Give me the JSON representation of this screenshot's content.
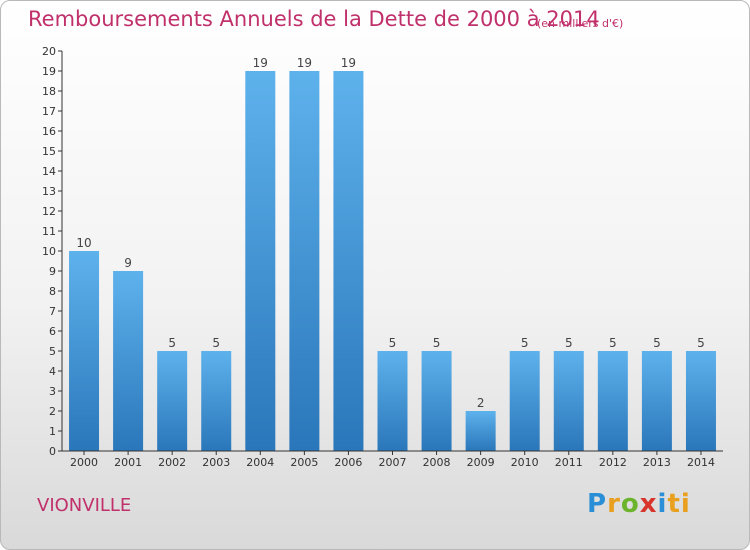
{
  "title": "Remboursements Annuels de la Dette de 2000 à 2014",
  "subtitle": "(en milliers d'€)",
  "commune": "VIONVILLE",
  "logo": {
    "letters": [
      "P",
      "r",
      "o",
      "x",
      "i",
      "ti"
    ]
  },
  "colors": {
    "accent": "#c0306a",
    "bar_light": "#5aaee9",
    "bar_dark": "#2a78bd",
    "axis": "#333333"
  },
  "chart_data": {
    "type": "bar",
    "title": "Remboursements Annuels de la Dette de 2000 à 2014",
    "subtitle": "(en milliers d'€)",
    "xlabel": "",
    "ylabel": "",
    "categories": [
      "2000",
      "2001",
      "2002",
      "2003",
      "2004",
      "2005",
      "2006",
      "2007",
      "2008",
      "2009",
      "2010",
      "2011",
      "2012",
      "2013",
      "2014"
    ],
    "values": [
      10,
      9,
      5,
      5,
      19,
      19,
      19,
      5,
      5,
      2,
      5,
      5,
      5,
      5,
      5
    ],
    "ylim": [
      0,
      20
    ],
    "yticks": [
      0,
      1,
      2,
      3,
      4,
      5,
      6,
      7,
      8,
      9,
      10,
      11,
      12,
      13,
      14,
      15,
      16,
      17,
      18,
      19,
      20
    ],
    "grid": false,
    "data_labels": true
  }
}
